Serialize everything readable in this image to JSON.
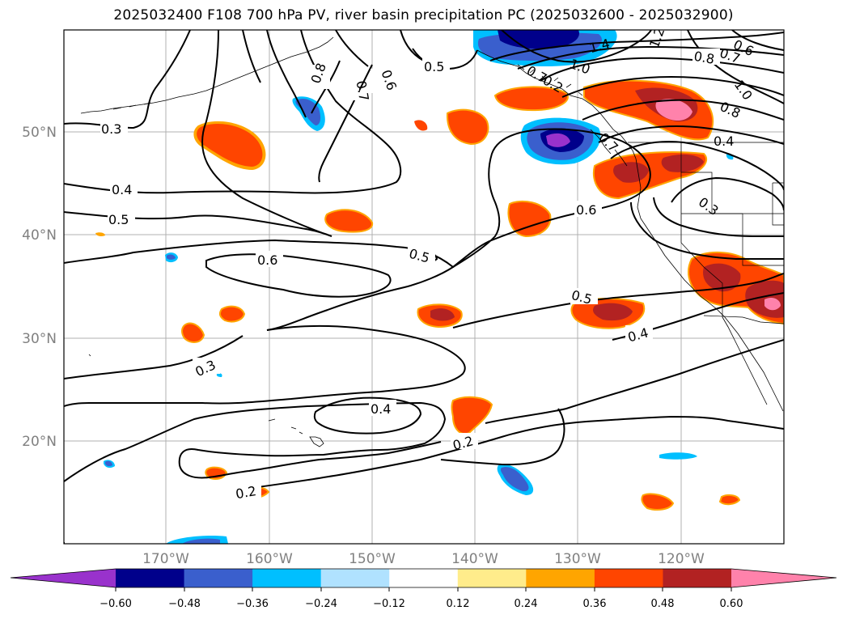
{
  "title": "2025032400 F108 700 hPa PV, river basin precipitation PC (2025032600 - 2025032900)",
  "map": {
    "lat_labels": [
      "50°N",
      "40°N",
      "30°N",
      "20°N"
    ],
    "lon_labels": [
      "170°W",
      "160°W",
      "150°W",
      "140°W",
      "130°W",
      "120°W"
    ],
    "contour_labels": [
      "0.3",
      "0.4",
      "0.5",
      "0.6",
      "0.5",
      "0.3",
      "0.2",
      "0.4",
      "0.2",
      "0.5",
      "0.4",
      "0.6",
      "0.7",
      "0.8",
      "0.6",
      "0.5",
      "0.7",
      "1.0",
      "1.4",
      "1.2",
      "0.8",
      "0.7",
      "0.6",
      "1.0",
      "0.8",
      "0.4",
      "0.3",
      "0.7",
      "0.2"
    ]
  },
  "colorbar": {
    "ticks": [
      "−0.60",
      "−0.48",
      "−0.36",
      "−0.24",
      "−0.12",
      "0.12",
      "0.24",
      "0.36",
      "0.48",
      "0.60"
    ],
    "colors": [
      "#9932cc",
      "#00008b",
      "#3a5fcd",
      "#00bfff",
      "#b0e2ff",
      "#ffffff",
      "#ffec8b",
      "#ffa500",
      "#ff4500",
      "#b22222",
      "#ff82ab"
    ]
  }
}
